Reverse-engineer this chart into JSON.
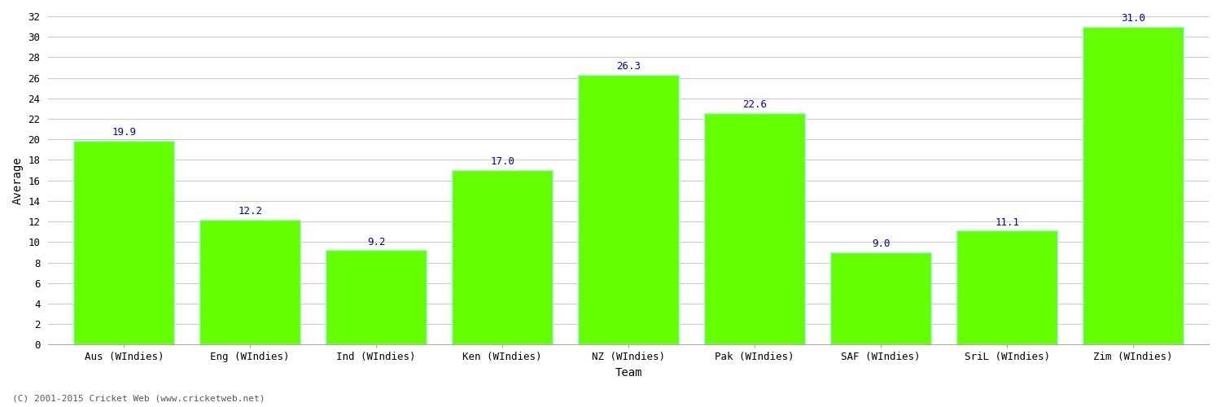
{
  "categories": [
    "Aus (WIndies)",
    "Eng (WIndies)",
    "Ind (WIndies)",
    "Ken (WIndies)",
    "NZ (WIndies)",
    "Pak (WIndies)",
    "SAF (WIndies)",
    "SriL (WIndies)",
    "Zim (WIndies)"
  ],
  "values": [
    19.9,
    12.2,
    9.2,
    17.0,
    26.3,
    22.6,
    9.0,
    11.1,
    31.0
  ],
  "bar_color": "#66ff00",
  "bar_edgecolor": "#aaeeff",
  "xlabel": "Team",
  "ylabel": "Average",
  "ylim": [
    0,
    32
  ],
  "yticks": [
    0,
    2,
    4,
    6,
    8,
    10,
    12,
    14,
    16,
    18,
    20,
    22,
    24,
    26,
    28,
    30,
    32
  ],
  "label_color": "#000099",
  "label_fontsize": 9,
  "axis_fontsize": 9,
  "xlabel_fontsize": 10,
  "ylabel_fontsize": 10,
  "background_color": "#ffffff",
  "grid_color": "#cccccc",
  "footer_text": "(C) 2001-2015 Cricket Web (www.cricketweb.net)",
  "footer_fontsize": 8,
  "footer_color": "#555555"
}
